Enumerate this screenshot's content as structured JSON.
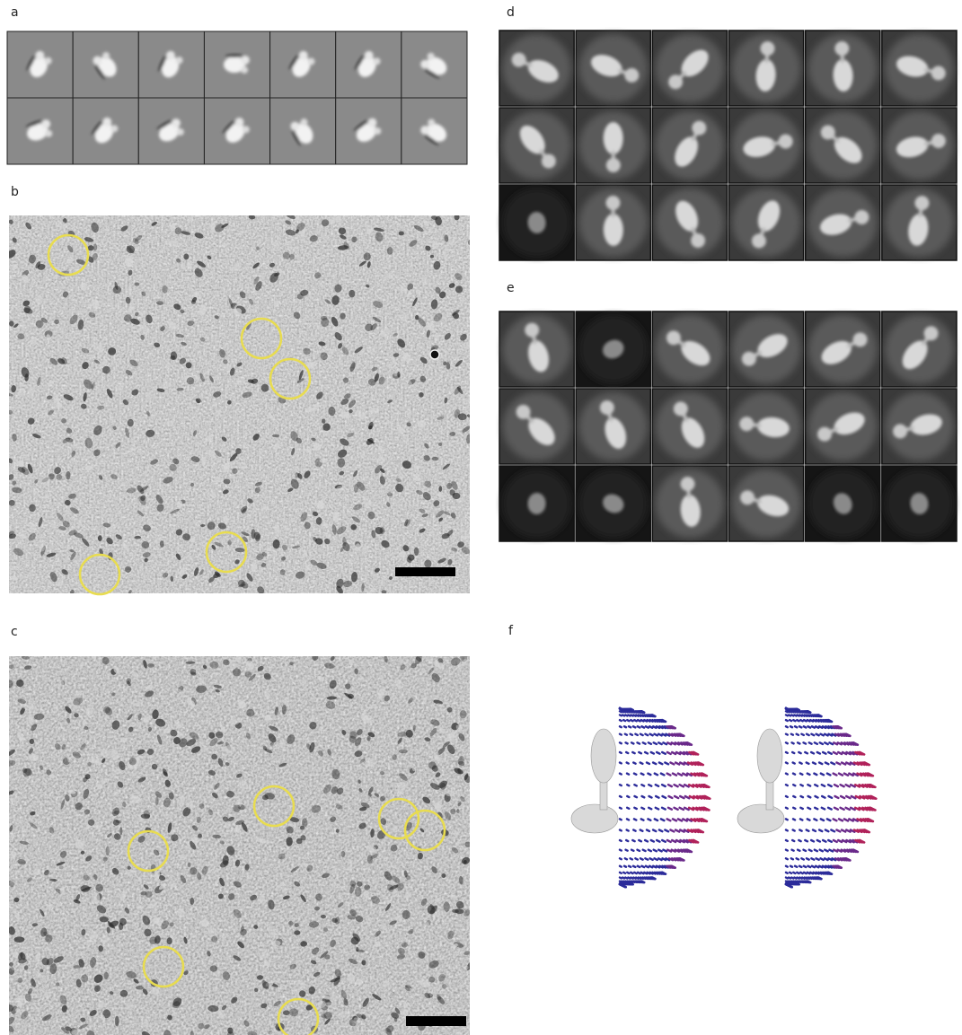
{
  "panels": [
    {
      "label": "a"
    },
    {
      "label": "b"
    },
    {
      "label": "c"
    },
    {
      "label": "d"
    },
    {
      "label": "e"
    },
    {
      "label": "f"
    }
  ]
}
